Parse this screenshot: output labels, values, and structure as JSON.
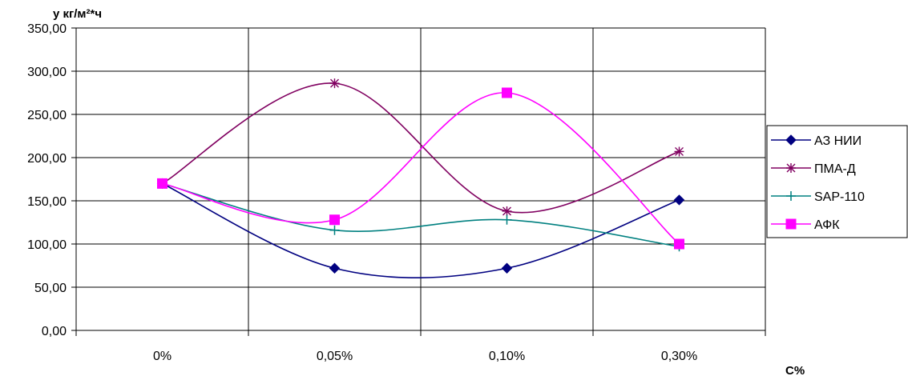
{
  "chart_data": {
    "type": "line",
    "ylabel": "y кг/м²*ч",
    "xlabel": "C%",
    "categories": [
      "0%",
      "0,05%",
      "0,10%",
      "0,30%"
    ],
    "ylim": [
      0,
      350
    ],
    "ytick_step": 50,
    "ytick_labels": [
      "0,00",
      "50,00",
      "100,00",
      "150,00",
      "200,00",
      "250,00",
      "300,00",
      "350,00"
    ],
    "grid": true,
    "smooth": true,
    "legend_position": "right",
    "series": [
      {
        "name": "АЗ НИИ",
        "values": [
          170,
          72,
          72,
          151
        ],
        "color": "#000080",
        "marker": "diamond"
      },
      {
        "name": "ПМА-Д",
        "values": [
          170,
          286,
          138,
          207
        ],
        "color": "#800060",
        "marker": "star"
      },
      {
        "name": "SAP-110",
        "values": [
          170,
          116,
          128,
          97
        ],
        "color": "#008080",
        "marker": "plus"
      },
      {
        "name": "АФК",
        "values": [
          170,
          128,
          275,
          100
        ],
        "color": "#ff00ff",
        "marker": "square"
      }
    ]
  }
}
